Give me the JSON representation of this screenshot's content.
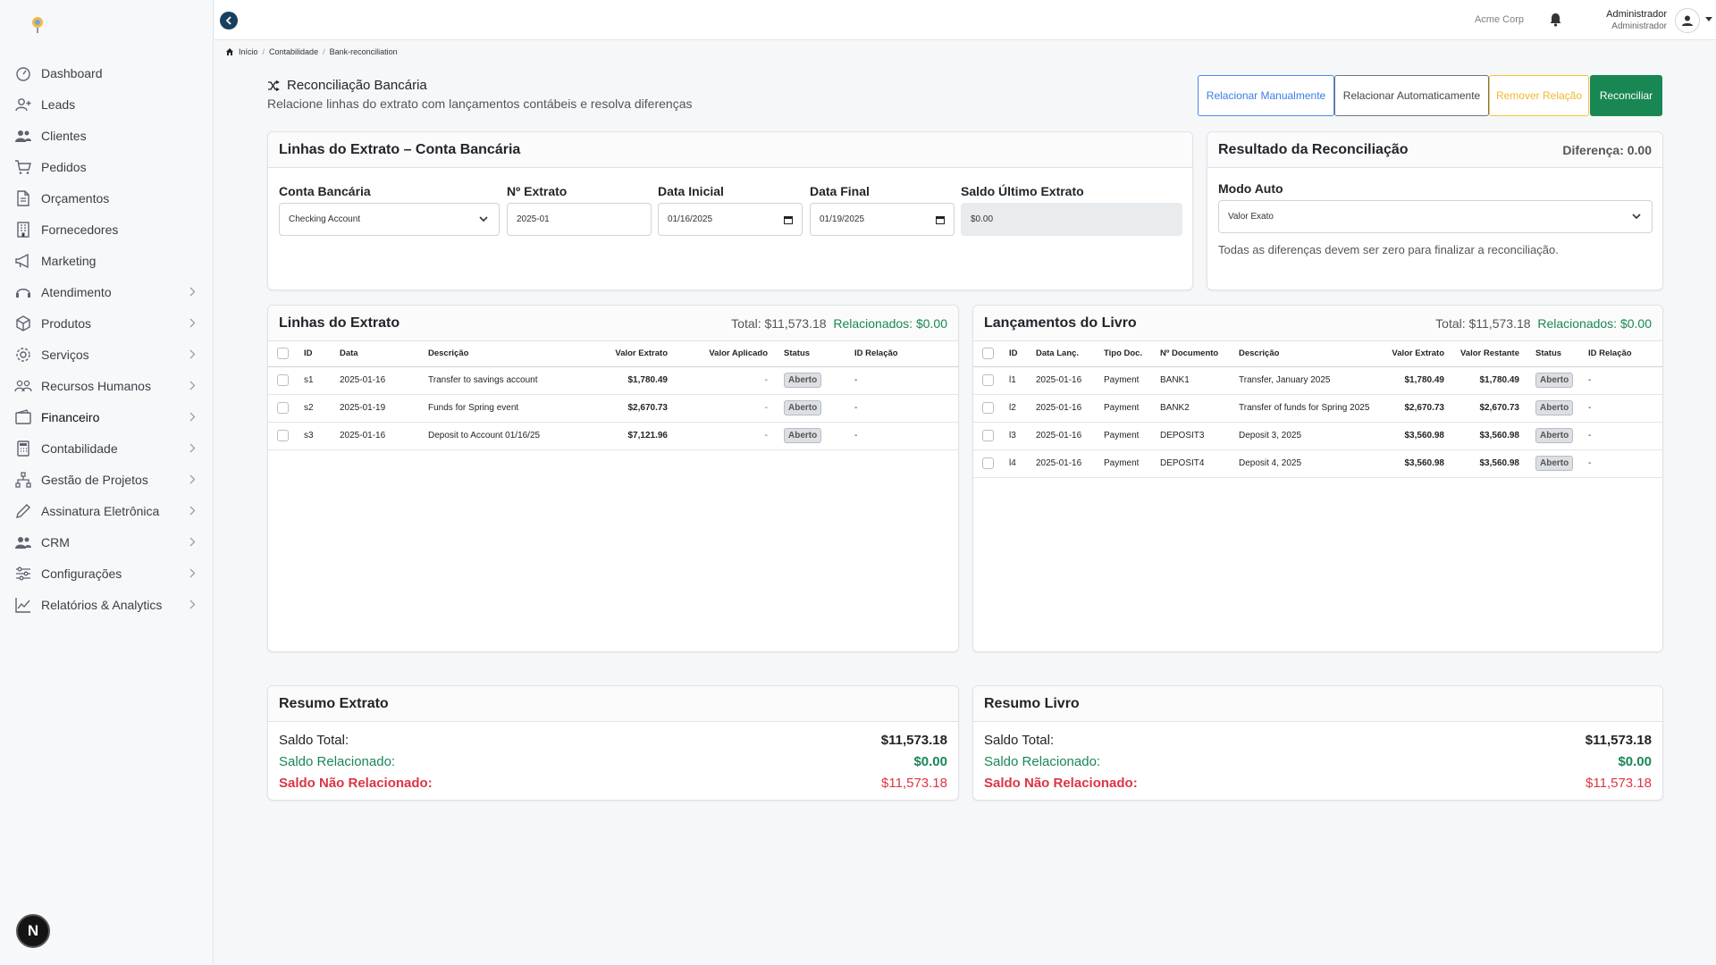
{
  "company": "Acme Corp",
  "user": {
    "name": "Administrador",
    "role": "Administrador"
  },
  "sidebar": {
    "items": [
      {
        "label": "Dashboard",
        "icon": "gauge-icon",
        "chevron": false
      },
      {
        "label": "Leads",
        "icon": "user-plus-icon",
        "chevron": false
      },
      {
        "label": "Clientes",
        "icon": "users-icon",
        "chevron": false
      },
      {
        "label": "Pedidos",
        "icon": "cart-icon",
        "chevron": false
      },
      {
        "label": "Orçamentos",
        "icon": "file-icon",
        "chevron": false
      },
      {
        "label": "Fornecedores",
        "icon": "building-icon",
        "chevron": false
      },
      {
        "label": "Marketing",
        "icon": "megaphone-icon",
        "chevron": false
      },
      {
        "label": "Atendimento",
        "icon": "headset-icon",
        "chevron": true
      },
      {
        "label": "Produtos",
        "icon": "box-icon",
        "chevron": true
      },
      {
        "label": "Serviços",
        "icon": "gear-icon",
        "chevron": true
      },
      {
        "label": "Recursos Humanos",
        "icon": "people-icon",
        "chevron": true
      },
      {
        "label": "Financeiro",
        "icon": "wallet-icon",
        "chevron": true,
        "active": true
      },
      {
        "label": "Contabilidade",
        "icon": "calculator-icon",
        "chevron": true
      },
      {
        "label": "Gestão de Projetos",
        "icon": "diagram-icon",
        "chevron": true
      },
      {
        "label": "Assinatura Eletrônica",
        "icon": "pen-icon",
        "chevron": true
      },
      {
        "label": "CRM",
        "icon": "users-icon",
        "chevron": true
      },
      {
        "label": "Configurações",
        "icon": "sliders-icon",
        "chevron": true
      },
      {
        "label": "Relatórios & Analytics",
        "icon": "chart-line-icon",
        "chevron": true
      }
    ]
  },
  "breadcrumb": {
    "home": "Início",
    "section": "Contabilidade",
    "current": "Bank-reconciliation"
  },
  "page": {
    "title": "Reconciliação Bancária",
    "subtitle": "Relacione linhas do extrato com lançamentos contábeis e resolva diferenças"
  },
  "actions": {
    "manual": "Relacionar Manualmente",
    "auto": "Relacionar Automaticamente",
    "remove": "Remover Relação",
    "reconcile": "Reconciliar"
  },
  "statement_card": {
    "title": "Linhas do Extrato – Conta Bancária",
    "bank_account_label": "Conta Bancária",
    "bank_account_value": "Checking Account",
    "statement_no_label": "Nº Extrato",
    "statement_no_value": "2025-01",
    "start_date_label": "Data Inicial",
    "start_date_value": "01/16/2025",
    "end_date_label": "Data Final",
    "end_date_value": "01/19/2025",
    "last_balance_label": "Saldo Último Extrato",
    "last_balance_value": "$0.00"
  },
  "result_card": {
    "title": "Resultado da Reconciliação",
    "difference": "Diferença: 0.00",
    "mode_label": "Modo Auto",
    "mode_value": "Valor Exato",
    "note": "Todas as diferenças devem ser zero para finalizar a reconciliação."
  },
  "statement_lines": {
    "title": "Linhas do Extrato",
    "total": "Total: $11,573.18",
    "matched": "Relacionados: $0.00",
    "headers": [
      "ID",
      "Data",
      "Descrição",
      "Valor Extrato",
      "Valor Aplicado",
      "Status",
      "ID Relação"
    ],
    "rows": [
      {
        "id": "s1",
        "date": "2025-01-16",
        "desc": "Transfer to savings account",
        "amount": "$1,780.49",
        "applied": "-",
        "status": "Aberto",
        "rel": "-"
      },
      {
        "id": "s2",
        "date": "2025-01-19",
        "desc": "Funds for Spring event",
        "amount": "$2,670.73",
        "applied": "-",
        "status": "Aberto",
        "rel": "-"
      },
      {
        "id": "s3",
        "date": "2025-01-16",
        "desc": "Deposit to Account 01/16/25",
        "amount": "$7,121.96",
        "applied": "-",
        "status": "Aberto",
        "rel": "-"
      }
    ]
  },
  "ledger": {
    "title": "Lançamentos do Livro",
    "total": "Total: $11,573.18",
    "matched": "Relacionados: $0.00",
    "headers": [
      "ID",
      "Data Lanç.",
      "Tipo Doc.",
      "Nº Documento",
      "Descrição",
      "Valor Extrato",
      "Valor Restante",
      "Status",
      "ID Relação"
    ],
    "rows": [
      {
        "id": "l1",
        "date": "2025-01-16",
        "type": "Payment",
        "doc": "BANK1",
        "desc": "Transfer, January 2025",
        "amount": "$1,780.49",
        "remaining": "$1,780.49",
        "status": "Aberto",
        "rel": "-"
      },
      {
        "id": "l2",
        "date": "2025-01-16",
        "type": "Payment",
        "doc": "BANK2",
        "desc": "Transfer of funds for Spring 2025",
        "amount": "$2,670.73",
        "remaining": "$2,670.73",
        "status": "Aberto",
        "rel": "-"
      },
      {
        "id": "l3",
        "date": "2025-01-16",
        "type": "Payment",
        "doc": "DEPOSIT3",
        "desc": "Deposit 3, 2025",
        "amount": "$3,560.98",
        "remaining": "$3,560.98",
        "status": "Aberto",
        "rel": "-"
      },
      {
        "id": "l4",
        "date": "2025-01-16",
        "type": "Payment",
        "doc": "DEPOSIT4",
        "desc": "Deposit 4, 2025",
        "amount": "$3,560.98",
        "remaining": "$3,560.98",
        "status": "Aberto",
        "rel": "-"
      }
    ]
  },
  "summary_statement": {
    "title": "Resumo Extrato",
    "total_label": "Saldo Total:",
    "total": "$11,573.18",
    "matched_label": "Saldo Relacionado:",
    "matched": "$0.00",
    "unmatched_label": "Saldo Não Relacionado:",
    "unmatched": "$11,573.18"
  },
  "summary_ledger": {
    "title": "Resumo Livro",
    "total_label": "Saldo Total:",
    "total": "$11,573.18",
    "matched_label": "Saldo Relacionado:",
    "matched": "$0.00",
    "unmatched_label": "Saldo Não Relacionado:",
    "unmatched": "$11,573.18"
  },
  "dev_badge": "N"
}
